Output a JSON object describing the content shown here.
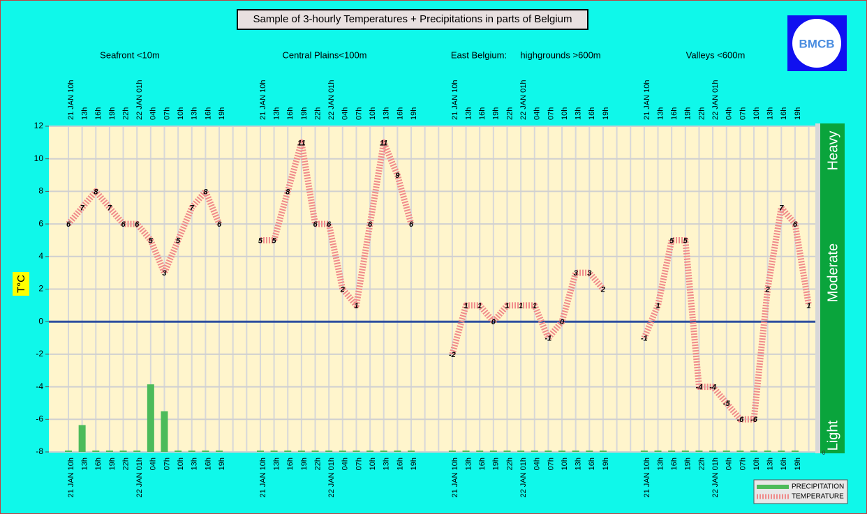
{
  "chart_data": {
    "type": "line",
    "title": "Sample of 3-hourly Temperatures + Precipitations in parts of Belgium",
    "logo_text": "BMCB",
    "group_labels": [
      "Seafront <10m",
      "Central Plains<100m",
      "East Belgium:",
      "highgrounds >600m",
      "Valleys <600m"
    ],
    "y_label": "T°C",
    "categories": [
      "21 JAN 10h",
      "13h",
      "16h",
      "19h",
      "22h",
      "22 JAN 01h",
      "04h",
      "07h",
      "10h",
      "13h",
      "16h",
      "19h",
      null,
      null,
      "21 JAN 10h",
      "13h",
      "16h",
      "19h",
      "22h",
      "22 JAN 01h",
      "04h",
      "07h",
      "10h",
      "13h",
      "16h",
      "19h",
      null,
      null,
      "21 JAN 10h",
      "13h",
      "16h",
      "19h",
      "22h",
      "22 JAN 01h",
      "04h",
      "07h",
      "10h",
      "13h",
      "16h",
      "19h",
      null,
      null,
      "21 JAN 10h",
      "13h",
      "16h",
      "19h",
      "22h",
      "22 JAN 01h",
      "04h",
      "07h",
      "10h",
      "13h",
      "16h",
      "19h",
      null
    ],
    "series": [
      {
        "name": "PRECIPITATION",
        "type": "bar",
        "axis": "y2",
        "color": "#4cbb5a",
        "values": [
          0,
          1.65,
          0,
          0,
          0,
          0,
          4.15,
          2.5,
          0,
          0,
          0,
          0,
          null,
          null,
          0,
          0,
          0,
          0,
          0,
          0,
          0,
          0,
          0,
          0,
          0,
          0,
          null,
          null,
          0,
          0,
          0,
          0,
          0,
          0,
          0,
          0,
          0,
          0,
          0,
          0,
          null,
          null,
          0,
          0,
          0,
          0,
          0,
          0,
          0,
          0,
          0,
          0,
          0,
          0,
          null
        ]
      },
      {
        "name": "TEMPERATURE",
        "type": "line",
        "color": "#f08a8a",
        "values": [
          6,
          7,
          8,
          7,
          6,
          6,
          5,
          3,
          5,
          7,
          8,
          6,
          null,
          null,
          5,
          5,
          8,
          11,
          6,
          6,
          2,
          1,
          6,
          11,
          9,
          6,
          null,
          null,
          -2,
          1,
          1,
          0,
          1,
          1,
          1,
          -1,
          0,
          3,
          3,
          2,
          null,
          null,
          -1,
          1,
          5,
          5,
          -4,
          -4,
          -5,
          -6,
          -6,
          2,
          7,
          6,
          1
        ]
      }
    ],
    "ylim": [
      -8,
      12
    ],
    "yticks": [
      -8,
      -6,
      -4,
      -2,
      0,
      2,
      4,
      6,
      8,
      10,
      12
    ],
    "y2lim": [
      0,
      20
    ],
    "y2ticks": [
      0,
      {
        "value": 1,
        "label": "Light"
      },
      {
        "value": 11,
        "label": "Moderate"
      },
      {
        "value": 18.5,
        "label": "Heavy"
      }
    ],
    "grid": true,
    "legend": "lower right"
  }
}
